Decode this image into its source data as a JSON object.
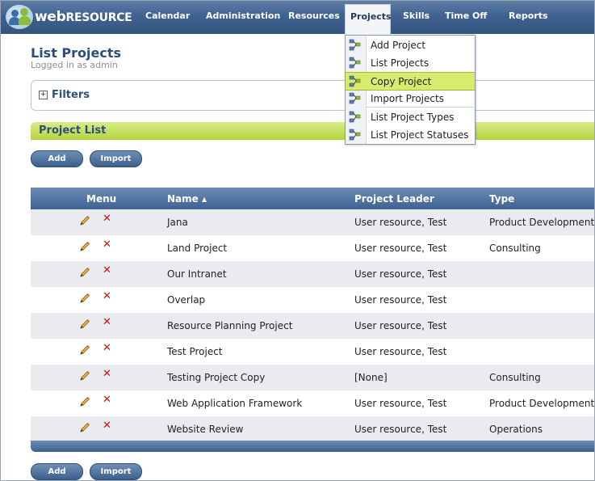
{
  "app": {
    "logo_web": "web",
    "logo_resource": "RESOURCE"
  },
  "nav": {
    "items": [
      {
        "label": "Calendar"
      },
      {
        "label": "Administration"
      },
      {
        "label": "Resources"
      },
      {
        "label": "Projects"
      },
      {
        "label": "Skills"
      },
      {
        "label": "Time Off"
      },
      {
        "label": "Reports"
      }
    ],
    "active": "Projects"
  },
  "dropdown": {
    "items": [
      {
        "label": "Add Project"
      },
      {
        "label": "List Projects"
      },
      {
        "label": "Copy Project"
      },
      {
        "label": "Import Projects"
      },
      {
        "label": "List Project Types"
      },
      {
        "label": "List Project Statuses"
      }
    ],
    "highlighted": "Copy Project",
    "highlight_color": "#d7ec6e"
  },
  "page": {
    "title": "List Projects",
    "login_info": "Logged in as admin"
  },
  "filters": {
    "toggle": "+",
    "label": "Filters"
  },
  "project_list": {
    "label": "Project List",
    "buttons": {
      "add": "Add",
      "import": "Import"
    }
  },
  "table": {
    "columns": {
      "menu": "Menu",
      "name": "Name",
      "name_sort": "▲",
      "leader": "Project Leader",
      "type": "Type"
    },
    "rows": [
      {
        "name": "Jana",
        "leader": "User resource, Test",
        "type": "Product Development"
      },
      {
        "name": "Land Project",
        "leader": "User resource, Test",
        "type": "Consulting"
      },
      {
        "name": "Our Intranet",
        "leader": "User resource, Test",
        "type": ""
      },
      {
        "name": "Overlap",
        "leader": "User resource, Test",
        "type": ""
      },
      {
        "name": "Resource Planning Project",
        "leader": "User resource, Test",
        "type": ""
      },
      {
        "name": "Test Project",
        "leader": "User resource, Test",
        "type": ""
      },
      {
        "name": "Testing Project Copy",
        "leader": "[None]",
        "type": "Consulting"
      },
      {
        "name": "Web Application Framework",
        "leader": "User resource, Test",
        "type": "Product Development"
      },
      {
        "name": "Website Review",
        "leader": "User resource, Test",
        "type": "Operations"
      }
    ],
    "row_icons": {
      "edit": "pencil-icon",
      "delete": "delete-x-icon"
    },
    "delete_glyph": "✕"
  },
  "colors": {
    "nav_bar": "#3f6290",
    "accent_green": "#b5d43a",
    "title_blue": "#2a4e7c",
    "delete_red": "#cc1111"
  }
}
